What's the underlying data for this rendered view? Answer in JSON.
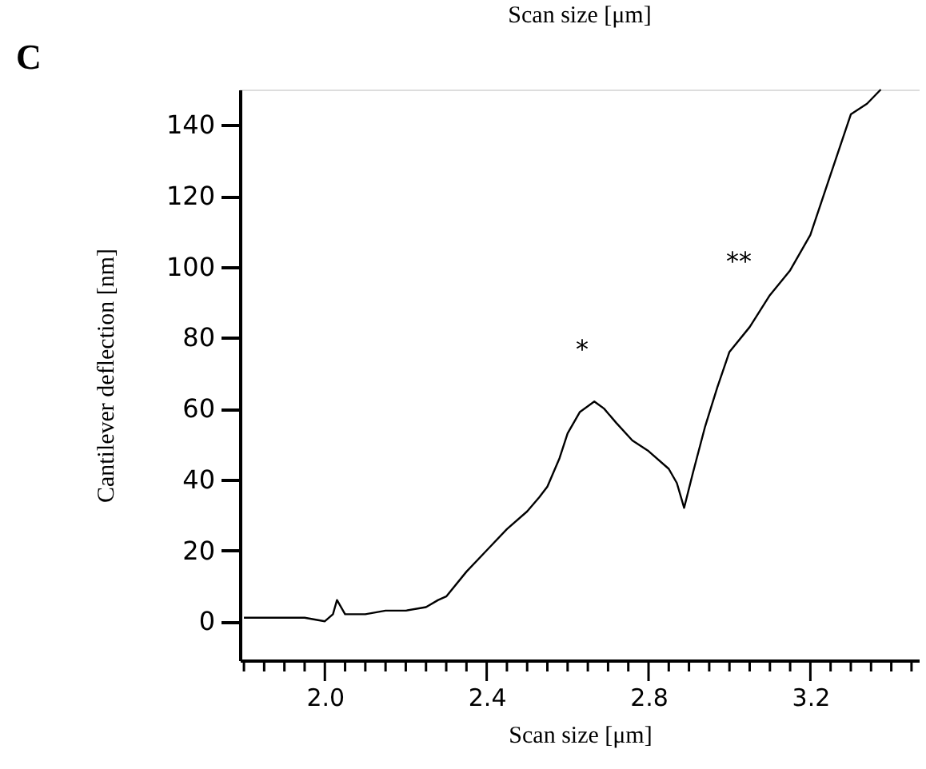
{
  "chart_data": {
    "type": "line",
    "title": "Scan size [μm]",
    "xlabel": "Scan size [μm]",
    "ylabel": "Cantilever deflection [nm]",
    "annotations": [
      "C",
      "*",
      "**"
    ],
    "x": [
      1.8,
      1.85,
      1.9,
      1.95,
      2.0,
      2.02,
      2.03,
      2.05,
      2.1,
      2.15,
      2.2,
      2.25,
      2.28,
      2.3,
      2.35,
      2.4,
      2.45,
      2.5,
      2.53,
      2.55,
      2.58,
      2.6,
      2.63,
      2.666,
      2.69,
      2.72,
      2.76,
      2.8,
      2.85,
      2.87,
      2.888,
      2.91,
      2.94,
      2.97,
      3.0,
      3.05,
      3.1,
      3.15,
      3.2,
      3.25,
      3.3,
      3.34,
      3.374
    ],
    "series": [
      {
        "color": "#000000",
        "values": [
          1,
          1,
          1,
          1,
          0,
          2,
          6,
          2,
          2,
          3,
          3,
          4,
          6,
          7,
          14,
          20,
          26,
          31,
          35,
          38,
          46,
          53,
          59,
          62,
          60,
          56,
          51,
          48,
          43,
          39,
          32,
          42,
          55,
          66,
          76,
          83,
          92,
          99,
          109,
          126,
          143,
          146,
          150
        ]
      }
    ],
    "xlim": [
      1.79,
      3.47
    ],
    "ylim": [
      -11,
      150
    ],
    "xticks": [
      {
        "value": 1.8,
        "label": null
      },
      {
        "value": 1.85,
        "label": null
      },
      {
        "value": 1.9,
        "label": null
      },
      {
        "value": 1.95,
        "label": null
      },
      {
        "value": 2.0,
        "label": "2.0"
      },
      {
        "value": 2.05,
        "label": null
      },
      {
        "value": 2.1,
        "label": null
      },
      {
        "value": 2.15,
        "label": null
      },
      {
        "value": 2.2,
        "label": null
      },
      {
        "value": 2.25,
        "label": null
      },
      {
        "value": 2.3,
        "label": null
      },
      {
        "value": 2.35,
        "label": null
      },
      {
        "value": 2.4,
        "label": "2.4"
      },
      {
        "value": 2.45,
        "label": null
      },
      {
        "value": 2.5,
        "label": null
      },
      {
        "value": 2.55,
        "label": null
      },
      {
        "value": 2.6,
        "label": null
      },
      {
        "value": 2.65,
        "label": null
      },
      {
        "value": 2.7,
        "label": null
      },
      {
        "value": 2.75,
        "label": null
      },
      {
        "value": 2.8,
        "label": "2.8"
      },
      {
        "value": 2.85,
        "label": null
      },
      {
        "value": 2.9,
        "label": null
      },
      {
        "value": 2.95,
        "label": null
      },
      {
        "value": 3.0,
        "label": null
      },
      {
        "value": 3.05,
        "label": null
      },
      {
        "value": 3.1,
        "label": null
      },
      {
        "value": 3.15,
        "label": null
      },
      {
        "value": 3.2,
        "label": "3.2"
      },
      {
        "value": 3.25,
        "label": null
      },
      {
        "value": 3.3,
        "label": null
      },
      {
        "value": 3.35,
        "label": null
      },
      {
        "value": 3.4,
        "label": null
      },
      {
        "value": 3.45,
        "label": null
      }
    ],
    "yticks": [
      0,
      20,
      40,
      60,
      80,
      100,
      120,
      140
    ],
    "grid": false,
    "legend": false,
    "marker": "none",
    "line_style": "solid"
  }
}
